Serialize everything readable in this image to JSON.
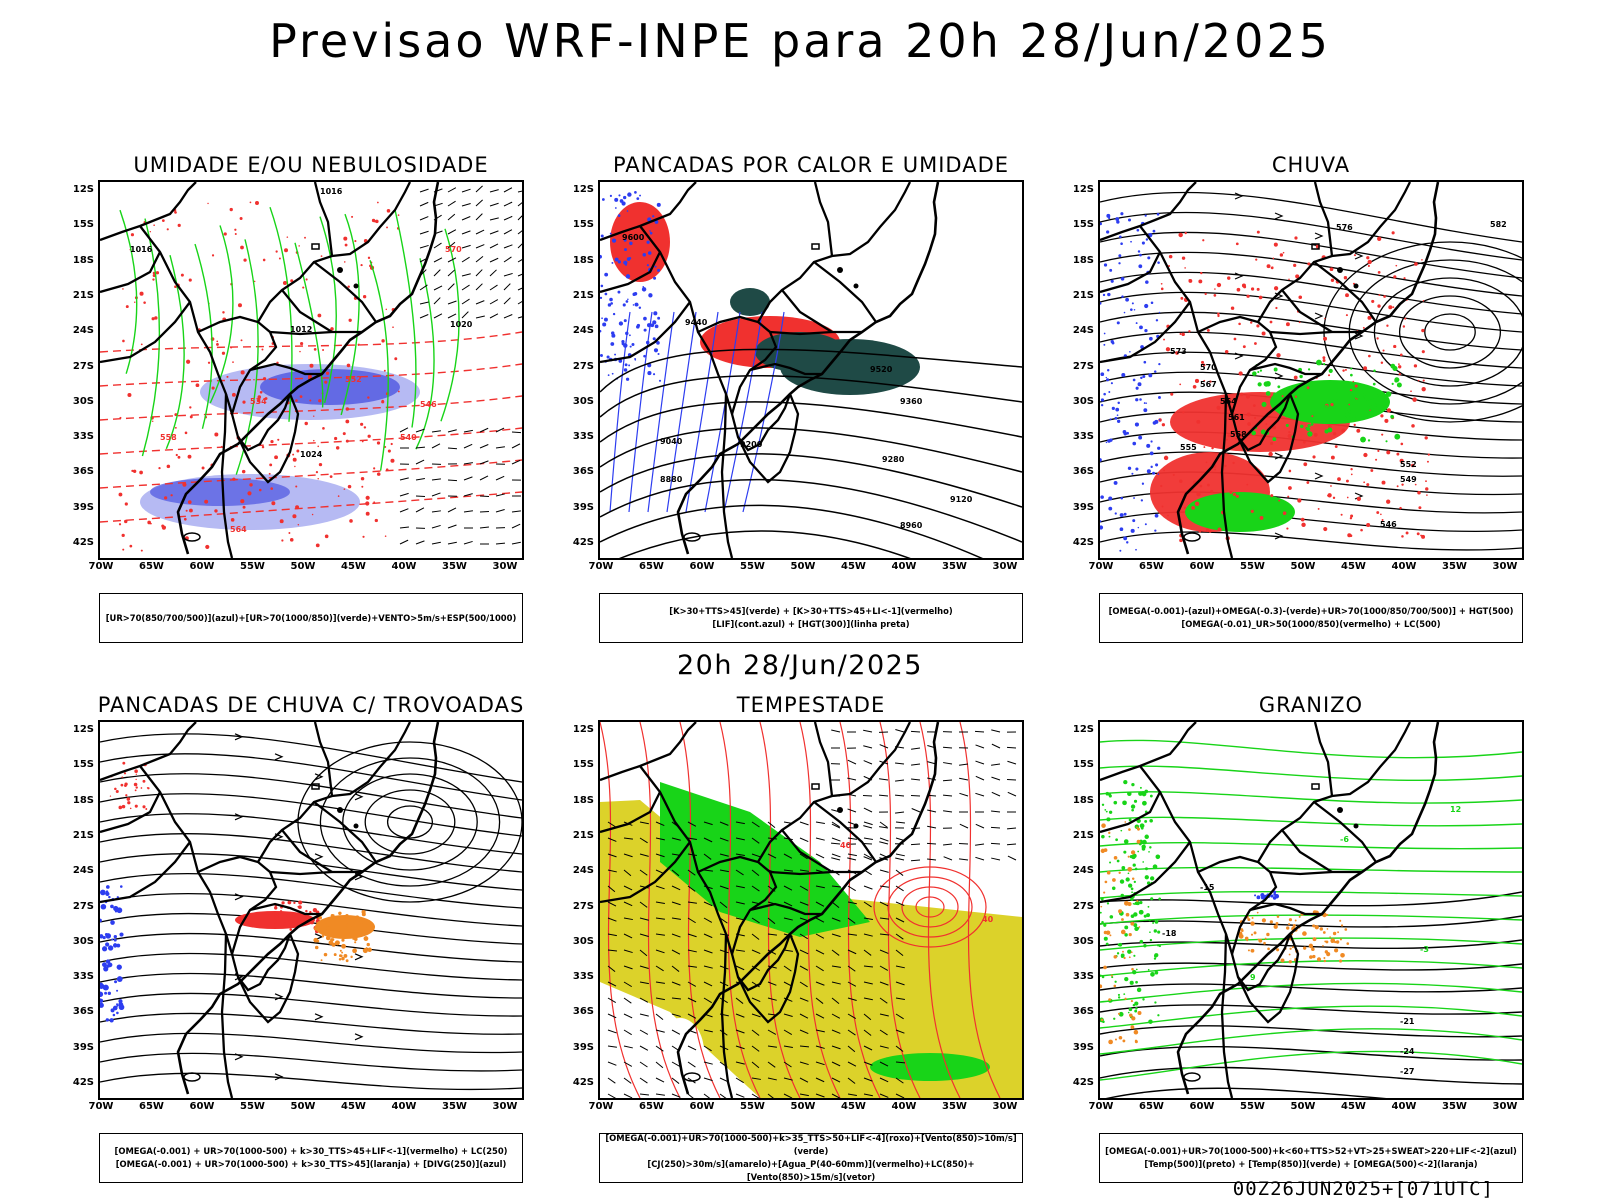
{
  "main_title": "Previsao WRF-INPE  para 20h 28/Jun/2025",
  "mid_title": "20h 28/Jun/2025",
  "footer": "00Z26JUN2025+[071UTC]",
  "lat_labels": [
    "12S",
    "15S",
    "18S",
    "21S",
    "24S",
    "27S",
    "30S",
    "33S",
    "36S",
    "39S",
    "42S"
  ],
  "lon_labels": [
    "70W",
    "65W",
    "60W",
    "55W",
    "50W",
    "45W",
    "40W",
    "35W",
    "30W"
  ],
  "panels": [
    {
      "title": "UMIDADE E/OU NEBULOSIDADE",
      "legend": [
        "[UR>70(850/700/500)](azul)+[UR>70(1000/850)](verde)+VENTO>5m/s+ESP(500/1000)"
      ],
      "contour_labels": [
        "1016",
        "1016",
        "1012",
        "1024",
        "1020",
        "570",
        "564",
        "558",
        "552",
        "546",
        "540",
        "534"
      ]
    },
    {
      "title": "PANCADAS POR CALOR E UMIDADE",
      "legend": [
        "[K>30+TTS>45](verde) + [K>30+TTS>45+LI<-1](vermelho)",
        "[LIF](cont.azul) + [HGT(300)](linha preta)"
      ],
      "contour_labels": [
        "9600",
        "9520",
        "9440",
        "9360",
        "9280",
        "9200",
        "9120",
        "9040",
        "8960",
        "8880"
      ]
    },
    {
      "title": "CHUVA",
      "legend": [
        "[OMEGA(-0.001)-(azul)+OMEGA(-0.3)-(verde)+UR>70(1000/850/700/500)] + HGT(500)",
        "[OMEGA(-0.01)_UR>50(1000/850)(vermelho) + LC(500)"
      ],
      "contour_labels": [
        "582",
        "576",
        "573",
        "570",
        "567",
        "564",
        "561",
        "558",
        "555",
        "552",
        "549",
        "546"
      ]
    },
    {
      "title": "PANCADAS DE CHUVA C/ TROVOADAS",
      "legend": [
        "[OMEGA(-0.001) + UR>70(1000-500) + k>30_TTS>45+LIF<-1](vermelho) + LC(250)",
        "[OMEGA(-0.001) + UR>70(1000-500) + k>30_TTS>45](laranja) + [DIVG(250)](azul)"
      ],
      "contour_labels": []
    },
    {
      "title": "TEMPESTADE",
      "legend": [
        "[OMEGA(-0.001)+UR>70(1000-500)+k>35_TTS>50+LIF<-4](roxo)+[Vento(850)>10m/s](verde)",
        "[CJ(250)>30m/s](amarelo)+[Agua_P(40-60mm)](vermelho)+LC(850)+[Vento(850)>15m/s](vetor)"
      ],
      "contour_labels": [
        "40",
        "40"
      ]
    },
    {
      "title": "GRANIZO",
      "legend": [
        "[OMEGA(-0.001)+UR>70(1000-500)+k<60+TTS>52+VT>25+SWEAT>220+LIF<-2](azul)",
        "[Temp(500)](preto) + [Temp(850)](verde) + [OMEGA(500)<-2](laranja)"
      ],
      "contour_labels": [
        "-15",
        "-18",
        "-21",
        "-24",
        "-27",
        "-3",
        "-6",
        "9",
        "12"
      ]
    }
  ],
  "colors": {
    "red": "#f0312f",
    "green": "#18d418",
    "blue": "#2d3df0",
    "lightblue": "#aeb2f2",
    "midblue": "#5a62e2",
    "dark": "#1f4a46",
    "yellow": "#dcd22a",
    "orange": "#f08a24"
  }
}
